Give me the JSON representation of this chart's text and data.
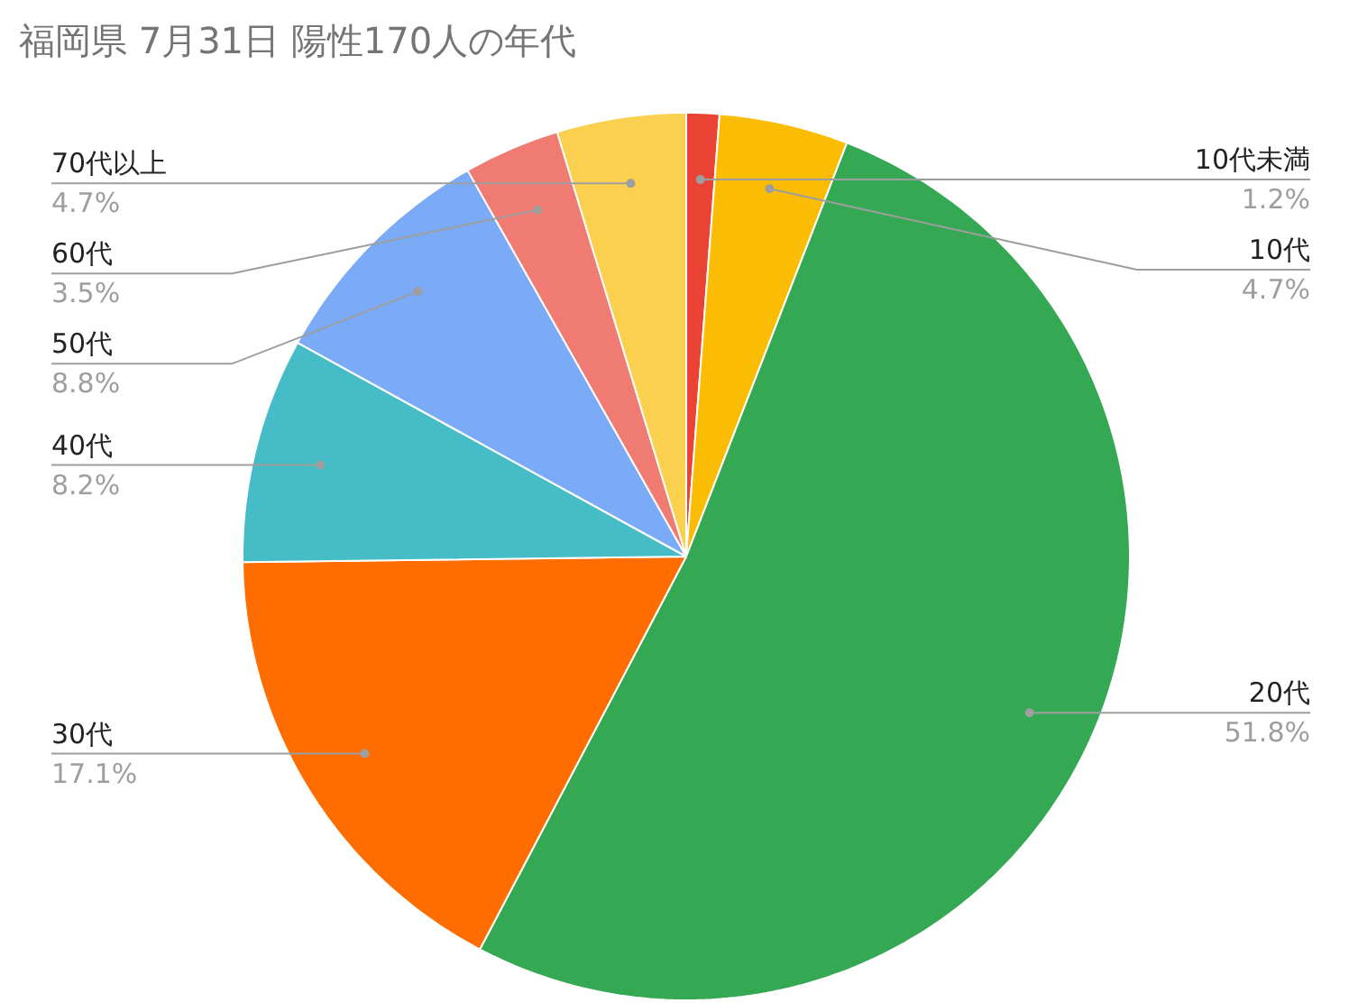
{
  "chart_data": {
    "type": "pie",
    "title": "福岡県 7月31日 陽性170人の年代",
    "categories": [
      "10代未満",
      "10代",
      "20代",
      "30代",
      "40代",
      "50代",
      "60代",
      "70代以上"
    ],
    "values": [
      1.2,
      4.7,
      51.8,
      17.1,
      8.2,
      8.8,
      3.5,
      4.7
    ],
    "value_labels": [
      "1.2%",
      "4.7%",
      "51.8%",
      "17.1%",
      "8.2%",
      "8.8%",
      "3.5%",
      "4.7%"
    ],
    "colors": [
      "#ea4335",
      "#fbbc04",
      "#34a853",
      "#ff6d01",
      "#46bdc6",
      "#7baaf7",
      "#f07b72",
      "#fcd04f"
    ]
  }
}
